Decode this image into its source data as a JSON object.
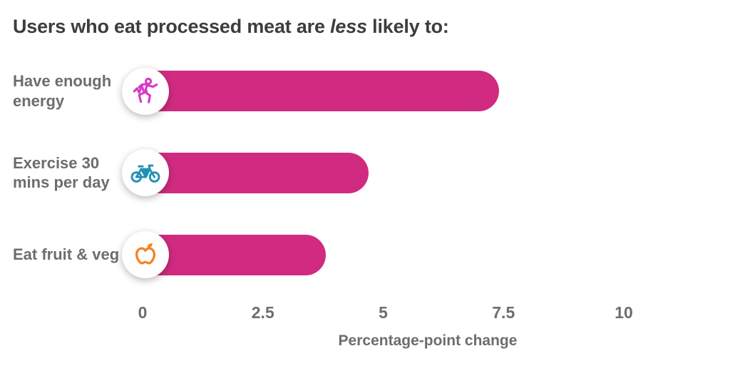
{
  "title": {
    "pre": "Users who eat processed meat are ",
    "italic": "less",
    "post": " likely to:"
  },
  "chart_data": {
    "type": "bar",
    "orientation": "horizontal",
    "title": "Users who eat processed meat are less likely to:",
    "categories": [
      "Have enough energy",
      "Exercise 30 mins per day",
      "Eat fruit & veg"
    ],
    "values": [
      7.4,
      4.7,
      3.8
    ],
    "xlabel": "Percentage-point change",
    "x_ticks": [
      "0",
      "2.5",
      "5",
      "7.5",
      "10"
    ],
    "x_tick_values": [
      0,
      2.5,
      5,
      7.5,
      10
    ],
    "xlim": [
      0,
      10
    ],
    "grid": false,
    "legend": false,
    "bar_color": "#d02b81",
    "icons": [
      "runner-pulse-icon",
      "bicycle-icon",
      "apple-icon"
    ],
    "icon_colors": [
      "#d43cc6",
      "#2090b5",
      "#f5821f"
    ]
  }
}
